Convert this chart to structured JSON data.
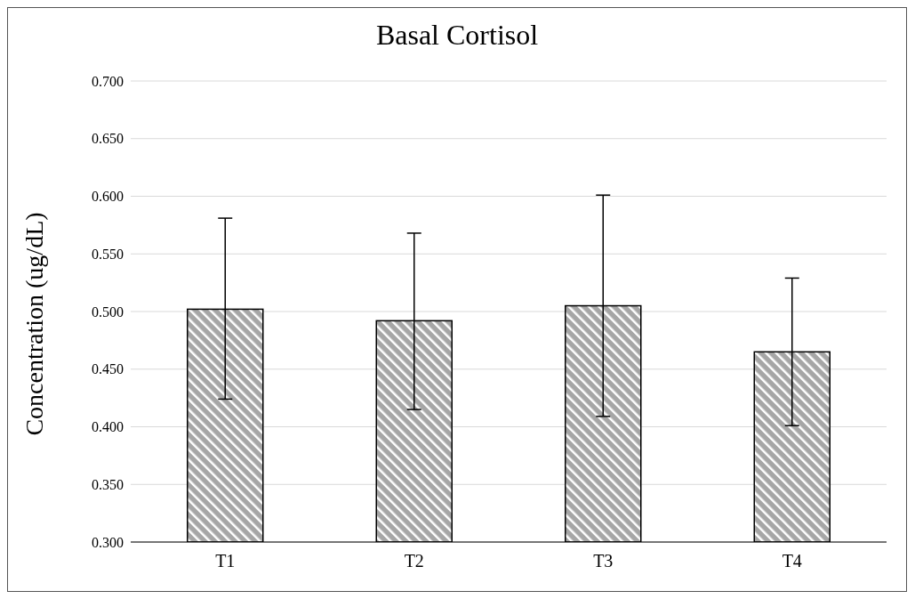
{
  "chart_data": {
    "type": "bar",
    "title": "Basal Cortisol",
    "ylabel": "Concentration (ug/dL)",
    "categories": [
      "T1",
      "T2",
      "T3",
      "T4"
    ],
    "values": [
      0.502,
      0.492,
      0.505,
      0.465
    ],
    "errors": [
      [
        0.424,
        0.581
      ],
      [
        0.415,
        0.568
      ],
      [
        0.409,
        0.601
      ],
      [
        0.401,
        0.529
      ]
    ],
    "color": "#a6a6a6",
    "ylim": [
      0.3,
      0.7
    ],
    "yticks": [
      {
        "value": 0.3,
        "label": "0.300"
      },
      {
        "value": 0.35,
        "label": "0.350"
      },
      {
        "value": 0.4,
        "label": "0.400"
      },
      {
        "value": 0.45,
        "label": "0.450"
      },
      {
        "value": 0.5,
        "label": "0.500"
      },
      {
        "value": 0.55,
        "label": "0.550"
      },
      {
        "value": 0.6,
        "label": "0.600"
      },
      {
        "value": 0.65,
        "label": "0.650"
      },
      {
        "value": 0.7,
        "label": "0.700"
      }
    ],
    "grid": "y"
  }
}
